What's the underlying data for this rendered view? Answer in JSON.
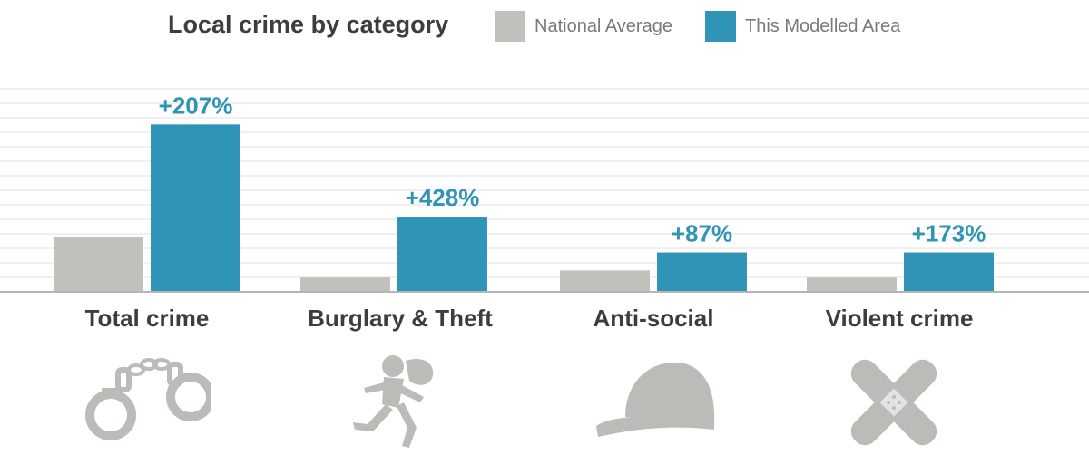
{
  "title": "Local crime by category",
  "legend": [
    {
      "label": "National Average",
      "color": "#c2c0bd"
    },
    {
      "label": "This Modelled Area",
      "color": "#3094b6"
    }
  ],
  "chart_data": {
    "type": "bar",
    "title": "Local crime by category",
    "categories": [
      "Total crime",
      "Burglary & Theft",
      "Anti-social",
      "Violent crime"
    ],
    "series": [
      {
        "name": "National Average",
        "color": "#c2c0bd",
        "values": [
          61,
          16,
          24,
          16
        ]
      },
      {
        "name": "This Modelled Area",
        "color": "#3094b6",
        "values": [
          187,
          84,
          44,
          44
        ]
      }
    ],
    "data_labels": [
      "+207%",
      "+428%",
      "+87%",
      "+173%"
    ],
    "ylim": [
      0,
      240
    ],
    "grid": true,
    "legend_position": "top"
  },
  "icons": [
    "handcuffs-icon",
    "running-thief-icon",
    "baseball-cap-icon",
    "crossed-bandage-icon"
  ]
}
